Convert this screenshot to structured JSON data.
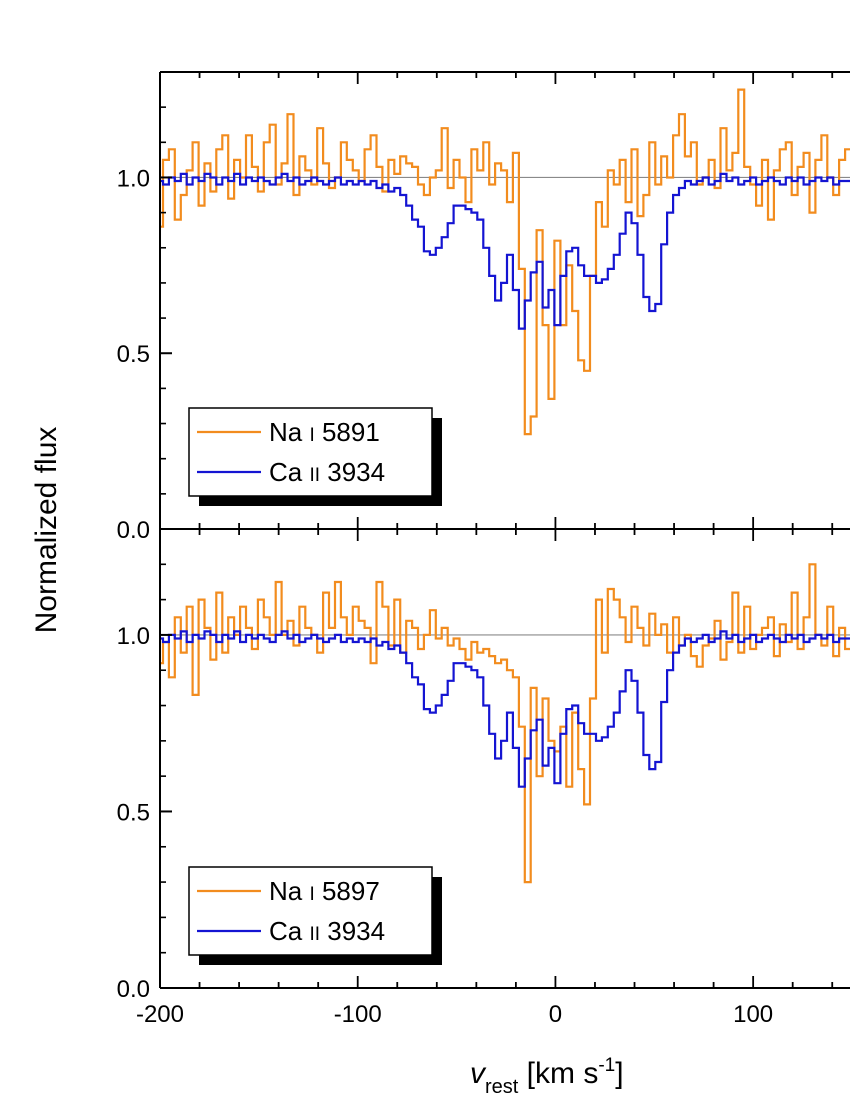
{
  "chart_data": [
    {
      "type": "line",
      "panel": "top",
      "xlim": [
        -200,
        150
      ],
      "ylim": [
        0.0,
        1.3
      ],
      "yticks": [
        0.0,
        0.5,
        1.0
      ],
      "ytick_labels": [
        "0.0",
        "0.5",
        "1.0"
      ],
      "reference_line": 1.0,
      "legend_placement": "bottom-left",
      "series": [
        {
          "name": "Na I 5891",
          "legend": {
            "element": "Na",
            "ion": "I",
            "wavelength": "5891"
          },
          "color": "#f28c1e",
          "step": true,
          "x": [
            -200,
            -197,
            -194,
            -191,
            -188,
            -185,
            -182,
            -179,
            -176,
            -173,
            -170,
            -167,
            -164,
            -161,
            -158,
            -155,
            -152,
            -149,
            -146,
            -143,
            -140,
            -137,
            -134,
            -131,
            -128,
            -125,
            -122,
            -119,
            -116,
            -113,
            -110,
            -107,
            -104,
            -101,
            -98,
            -95,
            -92,
            -89,
            -86,
            -83,
            -80,
            -77,
            -74,
            -71,
            -68,
            -65,
            -62,
            -59,
            -56,
            -53,
            -50,
            -47,
            -44,
            -41,
            -38,
            -35,
            -32,
            -29,
            -26,
            -23,
            -20,
            -17,
            -14,
            -11,
            -8,
            -5,
            -2,
            1,
            4,
            7,
            10,
            13,
            16,
            19,
            22,
            25,
            28,
            31,
            34,
            37,
            40,
            43,
            46,
            49,
            52,
            55,
            58,
            61,
            64,
            67,
            70,
            73,
            76,
            79,
            82,
            85,
            88,
            91,
            94,
            97,
            100,
            103,
            106,
            109,
            112,
            115,
            118,
            121,
            124,
            127,
            130,
            133,
            136,
            139,
            142,
            145,
            148
          ],
          "y": [
            0.86,
            1.05,
            1.08,
            0.88,
            0.95,
            1.02,
            1.1,
            0.92,
            1.04,
            0.96,
            1.08,
            1.12,
            0.94,
            1.05,
            1.0,
            1.12,
            1.03,
            0.96,
            1.1,
            1.15,
            0.98,
            1.04,
            1.18,
            0.95,
            1.06,
            1.02,
            0.98,
            1.14,
            1.04,
            0.97,
            1.0,
            1.1,
            1.05,
            1.02,
            0.99,
            1.08,
            1.12,
            1.03,
            0.96,
            1.05,
            1.01,
            1.06,
            1.04,
            1.03,
            0.98,
            0.95,
            1.0,
            1.02,
            1.14,
            0.97,
            1.05,
            1.0,
            0.93,
            1.08,
            1.02,
            1.1,
            0.98,
            1.04,
            1.02,
            0.93,
            1.07,
            0.74,
            0.27,
            0.32,
            0.85,
            0.58,
            0.37,
            0.82,
            0.58,
            0.75,
            0.62,
            0.48,
            0.45,
            0.72,
            0.93,
            0.86,
            1.02,
            0.98,
            1.05,
            0.93,
            1.08,
            0.89,
            0.95,
            1.1,
            0.98,
            1.06,
            1.0,
            1.12,
            1.18,
            1.06,
            1.1,
            0.98,
            1.0,
            1.05,
            0.97,
            1.14,
            1.02,
            1.07,
            1.25,
            1.03,
            0.98,
            0.92,
            1.05,
            0.88,
            1.02,
            1.08,
            1.1,
            0.95,
            1.03,
            1.07,
            0.9,
            1.05,
            1.12,
            1.0,
            0.95,
            1.05,
            1.08
          ]
        },
        {
          "name": "Ca II 3934",
          "legend": {
            "element": "Ca",
            "ion": "II",
            "wavelength": "3934"
          },
          "color": "#1414d2",
          "step": true,
          "x": [
            -200,
            -197,
            -194,
            -191,
            -188,
            -185,
            -182,
            -179,
            -176,
            -173,
            -170,
            -167,
            -164,
            -161,
            -158,
            -155,
            -152,
            -149,
            -146,
            -143,
            -140,
            -137,
            -134,
            -131,
            -128,
            -125,
            -122,
            -119,
            -116,
            -113,
            -110,
            -107,
            -104,
            -101,
            -98,
            -95,
            -92,
            -89,
            -86,
            -83,
            -80,
            -77,
            -74,
            -71,
            -68,
            -65,
            -62,
            -59,
            -56,
            -53,
            -50,
            -47,
            -44,
            -41,
            -38,
            -35,
            -32,
            -29,
            -26,
            -23,
            -20,
            -17,
            -14,
            -11,
            -8,
            -5,
            -2,
            1,
            4,
            7,
            10,
            13,
            16,
            19,
            22,
            25,
            28,
            31,
            34,
            37,
            40,
            43,
            46,
            49,
            52,
            55,
            58,
            61,
            64,
            67,
            70,
            73,
            76,
            79,
            82,
            85,
            88,
            91,
            94,
            97,
            100,
            103,
            106,
            109,
            112,
            115,
            118,
            121,
            124,
            127,
            130,
            133,
            136,
            139,
            142,
            145,
            148
          ],
          "y": [
            0.99,
            0.98,
            1.0,
            0.99,
            1.01,
            0.98,
            1.0,
            0.99,
            1.01,
            1.0,
            0.98,
            1.0,
            0.99,
            1.01,
            0.98,
            1.0,
            0.99,
            1.0,
            0.99,
            0.98,
            1.0,
            1.01,
            0.99,
            1.0,
            0.98,
            0.99,
            1.0,
            0.99,
            0.98,
            0.99,
            1.0,
            0.98,
            0.99,
            0.98,
            0.99,
            0.98,
            0.99,
            0.97,
            0.98,
            0.96,
            0.97,
            0.95,
            0.92,
            0.88,
            0.86,
            0.79,
            0.78,
            0.8,
            0.83,
            0.87,
            0.92,
            0.92,
            0.91,
            0.9,
            0.88,
            0.8,
            0.72,
            0.65,
            0.7,
            0.78,
            0.68,
            0.57,
            0.65,
            0.73,
            0.76,
            0.63,
            0.68,
            0.58,
            0.72,
            0.79,
            0.8,
            0.75,
            0.72,
            0.72,
            0.7,
            0.71,
            0.74,
            0.78,
            0.84,
            0.9,
            0.87,
            0.78,
            0.66,
            0.62,
            0.64,
            0.81,
            0.9,
            0.95,
            0.97,
            0.99,
            0.98,
            0.99,
            1.0,
            0.98,
            0.99,
            1.01,
            0.99,
            1.0,
            0.98,
            0.99,
            1.0,
            0.98,
            0.99,
            1.0,
            0.99,
            0.98,
            1.0,
            0.99,
            1.0,
            0.98,
            0.99,
            1.0,
            0.99,
            1.0,
            0.98,
            0.99,
            0.99
          ]
        }
      ]
    },
    {
      "type": "line",
      "panel": "bottom",
      "xlim": [
        -200,
        150
      ],
      "ylim": [
        0.0,
        1.3
      ],
      "xticks": [
        -200,
        -100,
        0,
        100
      ],
      "xtick_labels": [
        "-200",
        "-100",
        "0",
        "100"
      ],
      "yticks": [
        0.0,
        0.5,
        1.0
      ],
      "ytick_labels": [
        "0.0",
        "0.5",
        "1.0"
      ],
      "reference_line": 1.0,
      "legend_placement": "bottom-left",
      "series": [
        {
          "name": "Na I 5897",
          "legend": {
            "element": "Na",
            "ion": "I",
            "wavelength": "5897"
          },
          "color": "#f28c1e",
          "step": true,
          "x": [
            -200,
            -197,
            -194,
            -191,
            -188,
            -185,
            -182,
            -179,
            -176,
            -173,
            -170,
            -167,
            -164,
            -161,
            -158,
            -155,
            -152,
            -149,
            -146,
            -143,
            -140,
            -137,
            -134,
            -131,
            -128,
            -125,
            -122,
            -119,
            -116,
            -113,
            -110,
            -107,
            -104,
            -101,
            -98,
            -95,
            -92,
            -89,
            -86,
            -83,
            -80,
            -77,
            -74,
            -71,
            -68,
            -65,
            -62,
            -59,
            -56,
            -53,
            -50,
            -47,
            -44,
            -41,
            -38,
            -35,
            -32,
            -29,
            -26,
            -23,
            -20,
            -17,
            -14,
            -11,
            -8,
            -5,
            -2,
            1,
            4,
            7,
            10,
            13,
            16,
            19,
            22,
            25,
            28,
            31,
            34,
            37,
            40,
            43,
            46,
            49,
            52,
            55,
            58,
            61,
            64,
            67,
            70,
            73,
            76,
            79,
            82,
            85,
            88,
            91,
            94,
            97,
            100,
            103,
            106,
            109,
            112,
            115,
            118,
            121,
            124,
            127,
            130,
            133,
            136,
            139,
            142,
            145,
            148
          ],
          "y": [
            0.92,
            0.98,
            0.88,
            1.05,
            0.95,
            1.08,
            0.83,
            1.1,
            1.02,
            0.93,
            1.12,
            0.95,
            1.05,
            1.0,
            1.08,
            1.02,
            0.96,
            1.1,
            1.05,
            1.0,
            1.15,
            1.0,
            1.04,
            0.97,
            1.08,
            1.02,
            1.0,
            0.95,
            1.12,
            1.02,
            1.15,
            1.05,
            1.0,
            1.08,
            1.04,
            1.02,
            0.92,
            1.15,
            1.08,
            0.97,
            1.1,
            0.95,
            1.04,
            1.02,
            0.96,
            1.0,
            1.07,
            0.99,
            1.02,
            0.97,
            0.99,
            0.96,
            0.93,
            0.98,
            0.95,
            0.96,
            0.94,
            0.92,
            0.93,
            0.9,
            0.88,
            0.74,
            0.3,
            0.85,
            0.6,
            0.82,
            0.7,
            0.67,
            0.74,
            0.57,
            0.78,
            0.62,
            0.52,
            0.82,
            1.1,
            0.95,
            1.13,
            1.1,
            1.05,
            0.98,
            1.08,
            1.02,
            0.97,
            1.06,
            1.0,
            1.03,
            0.95,
            1.05,
            0.97,
            1.0,
            0.94,
            0.91,
            0.97,
            0.99,
            1.04,
            0.93,
            0.98,
            1.12,
            0.95,
            1.08,
            0.96,
            1.0,
            1.02,
            1.05,
            0.94,
            1.03,
            0.98,
            1.12,
            0.96,
            1.05,
            1.2,
            1.0,
            0.97,
            1.08,
            0.94,
            1.02,
            0.96
          ]
        },
        {
          "name": "Ca II 3934",
          "legend": {
            "element": "Ca",
            "ion": "II",
            "wavelength": "3934"
          },
          "color": "#1414d2",
          "step": true,
          "x": [
            -200,
            -197,
            -194,
            -191,
            -188,
            -185,
            -182,
            -179,
            -176,
            -173,
            -170,
            -167,
            -164,
            -161,
            -158,
            -155,
            -152,
            -149,
            -146,
            -143,
            -140,
            -137,
            -134,
            -131,
            -128,
            -125,
            -122,
            -119,
            -116,
            -113,
            -110,
            -107,
            -104,
            -101,
            -98,
            -95,
            -92,
            -89,
            -86,
            -83,
            -80,
            -77,
            -74,
            -71,
            -68,
            -65,
            -62,
            -59,
            -56,
            -53,
            -50,
            -47,
            -44,
            -41,
            -38,
            -35,
            -32,
            -29,
            -26,
            -23,
            -20,
            -17,
            -14,
            -11,
            -8,
            -5,
            -2,
            1,
            4,
            7,
            10,
            13,
            16,
            19,
            22,
            25,
            28,
            31,
            34,
            37,
            40,
            43,
            46,
            49,
            52,
            55,
            58,
            61,
            64,
            67,
            70,
            73,
            76,
            79,
            82,
            85,
            88,
            91,
            94,
            97,
            100,
            103,
            106,
            109,
            112,
            115,
            118,
            121,
            124,
            127,
            130,
            133,
            136,
            139,
            142,
            145,
            148
          ],
          "y": [
            0.99,
            0.98,
            1.0,
            0.99,
            1.01,
            0.98,
            1.0,
            0.99,
            1.01,
            1.0,
            0.98,
            1.0,
            0.99,
            1.01,
            0.98,
            1.0,
            0.99,
            1.0,
            0.99,
            0.98,
            1.0,
            1.01,
            0.99,
            1.0,
            0.98,
            0.99,
            1.0,
            0.99,
            0.98,
            0.99,
            1.0,
            0.98,
            0.99,
            0.98,
            0.99,
            0.98,
            0.99,
            0.97,
            0.98,
            0.96,
            0.97,
            0.95,
            0.92,
            0.88,
            0.86,
            0.79,
            0.78,
            0.8,
            0.83,
            0.87,
            0.92,
            0.92,
            0.91,
            0.9,
            0.88,
            0.8,
            0.72,
            0.65,
            0.7,
            0.78,
            0.68,
            0.57,
            0.65,
            0.73,
            0.76,
            0.63,
            0.68,
            0.58,
            0.72,
            0.79,
            0.8,
            0.75,
            0.72,
            0.72,
            0.7,
            0.71,
            0.74,
            0.78,
            0.84,
            0.9,
            0.87,
            0.78,
            0.66,
            0.62,
            0.64,
            0.81,
            0.9,
            0.95,
            0.97,
            0.99,
            0.98,
            0.99,
            1.0,
            0.98,
            0.99,
            1.01,
            0.99,
            1.0,
            0.98,
            0.99,
            1.0,
            0.98,
            0.99,
            1.0,
            0.99,
            0.98,
            1.0,
            0.99,
            1.0,
            0.98,
            0.99,
            1.0,
            0.99,
            1.0,
            0.98,
            0.99,
            0.99
          ]
        }
      ]
    }
  ],
  "axes": {
    "ylabel": "Normalized flux",
    "xlabel": {
      "symbol": "v",
      "subscript": "rest",
      "unit_open": " [km s",
      "unit_exp": "-1",
      "unit_close": "]"
    }
  }
}
